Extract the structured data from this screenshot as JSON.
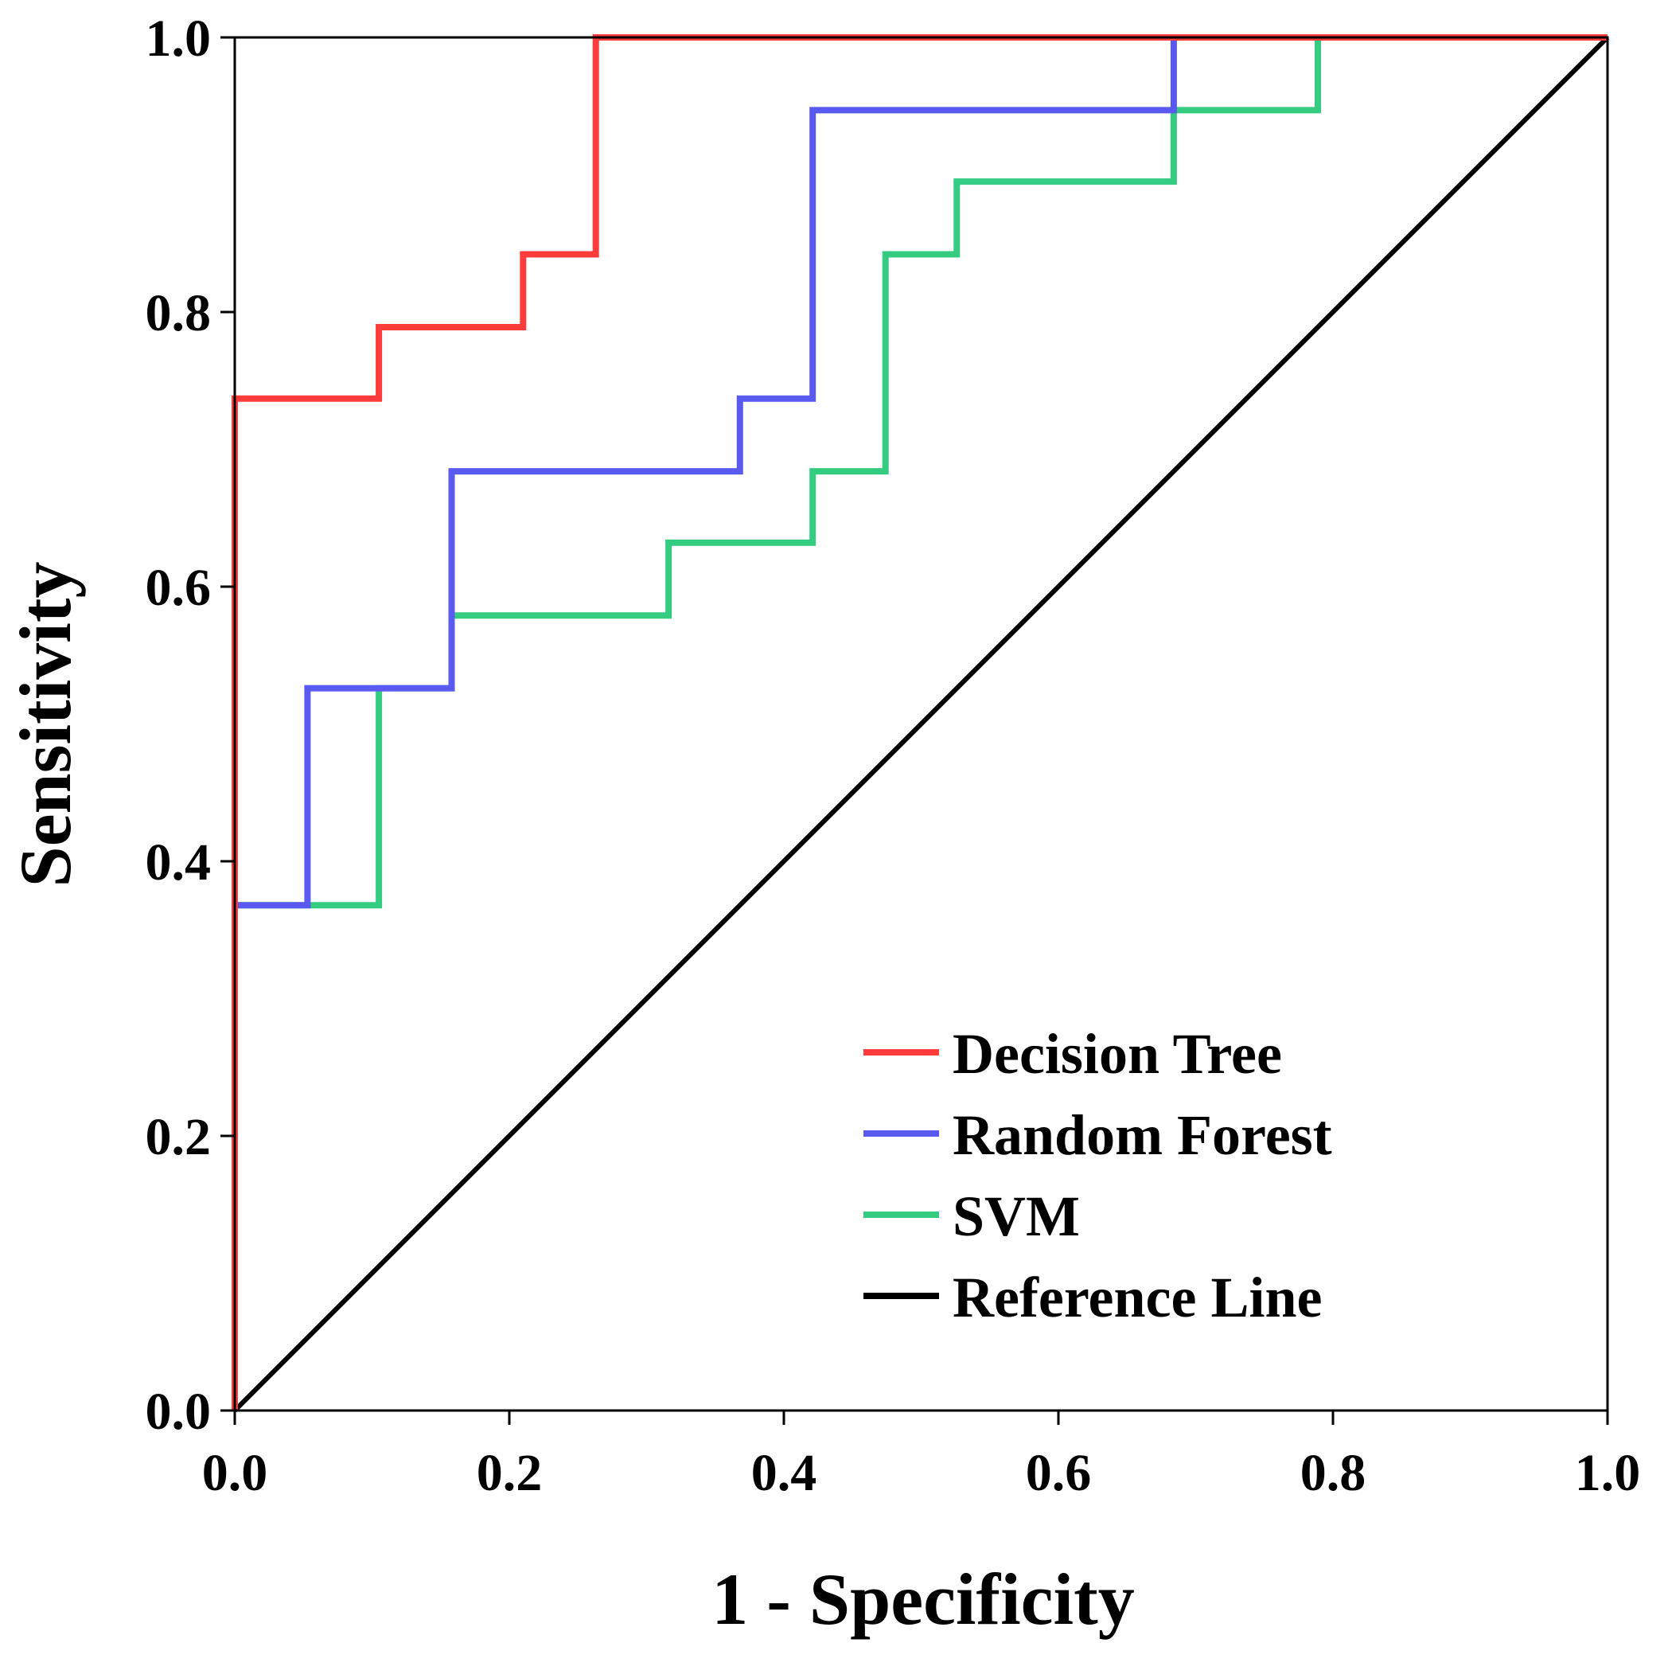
{
  "chart_data": {
    "type": "line",
    "title": "",
    "xlabel": "1 - Specificity",
    "ylabel": "Sensitivity",
    "xlim": [
      0.0,
      1.0
    ],
    "ylim": [
      0.0,
      1.0
    ],
    "xticks": [
      "0.0",
      "0.2",
      "0.4",
      "0.6",
      "0.8",
      "1.0"
    ],
    "yticks": [
      "0.0",
      "0.2",
      "0.4",
      "0.6",
      "0.8",
      "1.0"
    ],
    "grid": false,
    "legend_position": "bottom-right",
    "series": [
      {
        "name": "Decision Tree",
        "color": "#ff3b3b",
        "x": [
          0.0,
          0.0,
          0.0,
          0.105,
          0.105,
          0.21,
          0.21,
          0.263,
          0.263,
          1.0
        ],
        "y": [
          0.0,
          0.368,
          0.737,
          0.737,
          0.789,
          0.789,
          0.842,
          0.842,
          1.0,
          1.0
        ]
      },
      {
        "name": "Random Forest",
        "color": "#5a5af0",
        "x": [
          0.0,
          0.0,
          0.053,
          0.053,
          0.158,
          0.158,
          0.158,
          0.368,
          0.368,
          0.421,
          0.421,
          0.684,
          0.684,
          1.0
        ],
        "y": [
          0.0,
          0.368,
          0.368,
          0.526,
          0.526,
          0.579,
          0.684,
          0.684,
          0.737,
          0.737,
          0.947,
          0.947,
          1.0,
          1.0
        ]
      },
      {
        "name": "SVM",
        "color": "#33cc80",
        "x": [
          0.0,
          0.0,
          0.105,
          0.105,
          0.158,
          0.158,
          0.316,
          0.316,
          0.421,
          0.421,
          0.474,
          0.474,
          0.526,
          0.526,
          0.684,
          0.684,
          0.789,
          0.789,
          1.0
        ],
        "y": [
          0.0,
          0.368,
          0.368,
          0.526,
          0.526,
          0.579,
          0.579,
          0.632,
          0.632,
          0.684,
          0.684,
          0.842,
          0.842,
          0.895,
          0.895,
          0.947,
          0.947,
          1.0,
          1.0
        ]
      },
      {
        "name": "Reference Line",
        "color": "#000000",
        "x": [
          0.0,
          1.0
        ],
        "y": [
          0.0,
          1.0
        ]
      }
    ]
  }
}
